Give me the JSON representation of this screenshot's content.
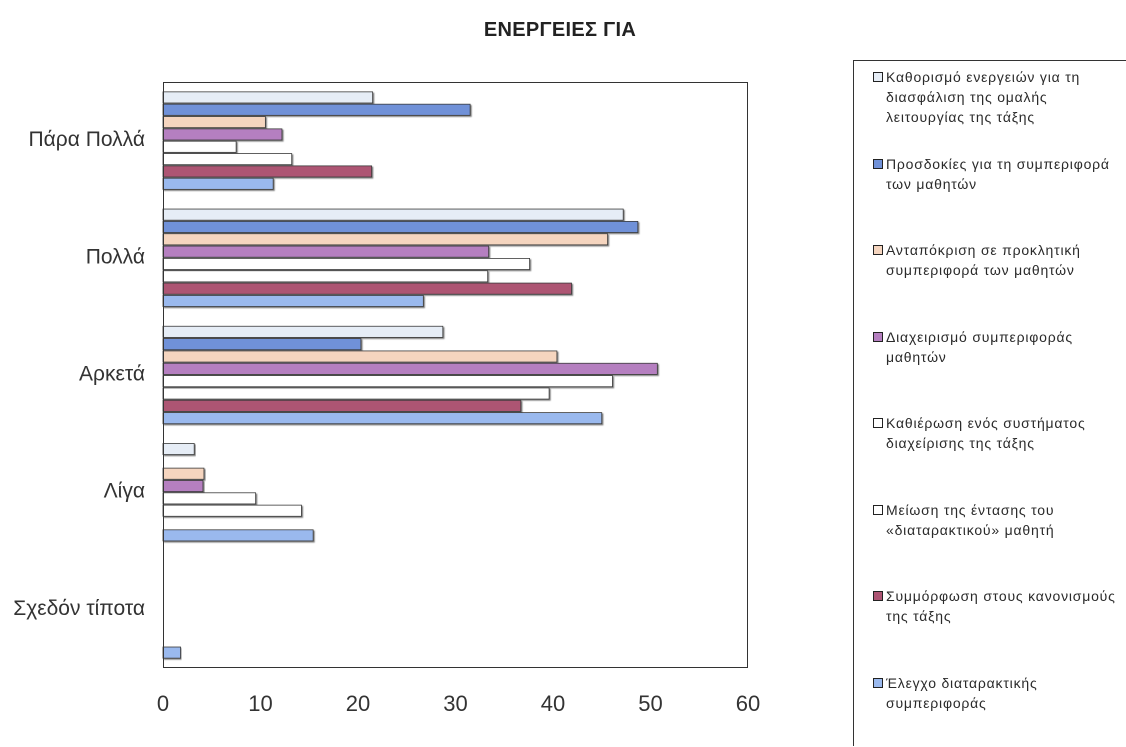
{
  "chart_data": {
    "type": "bar",
    "orientation": "horizontal",
    "title": "ΕΝΕΡΓΕΙΕΣ ΓΙΑ",
    "categories": [
      "Πάρα Πολλά",
      "Πολλά",
      "Αρκετά",
      "Λίγα",
      "Σχεδόν τίποτα"
    ],
    "xlim": [
      0,
      60
    ],
    "x_ticks": [
      0,
      10,
      20,
      30,
      40,
      50,
      60
    ],
    "grid": false,
    "legend_position": "right",
    "series": [
      {
        "name": "Καθορισμό ενεργειών για τη διασφάλιση της ομαλής λειτουργίας της τάξης",
        "color": "#e6edf6",
        "values": [
          21.5,
          47.2,
          28.7,
          3.2,
          0
        ]
      },
      {
        "name": "Προσδοκίες για τη συμπεριφορά των μαθητών",
        "color": "#7091d8",
        "values": [
          31.5,
          48.7,
          20.3,
          0,
          0
        ]
      },
      {
        "name": "Ανταπόκριση σε προκλητική συμπεριφορά των μαθητών",
        "color": "#f5d5bf",
        "values": [
          10.5,
          45.6,
          40.4,
          4.2,
          0
        ]
      },
      {
        "name": "Διαχειρισμό συμπεριφοράς μαθητών",
        "color": "#b57fc0",
        "values": [
          12.2,
          33.4,
          50.7,
          4.1,
          0
        ]
      },
      {
        "name": "Καθιέρωση ενός συστήματος διαχείρισης της τάξης",
        "color": "#ffffff",
        "values": [
          7.5,
          37.6,
          46.1,
          9.5,
          0
        ]
      },
      {
        "name": "Μείωση της έντασης του «διαταρακτικού» μαθητή",
        "color": "#ffffff",
        "values": [
          13.2,
          33.3,
          39.6,
          14.2,
          0
        ]
      },
      {
        "name": "Συμμόρφωση στους κανονισμούς της τάξης",
        "color": "#ad5473",
        "values": [
          21.4,
          41.9,
          36.7,
          0,
          0
        ]
      },
      {
        "name": "Έλεγχο διαταρακτικής συμπεριφοράς",
        "color": "#9ab9ee",
        "values": [
          11.3,
          26.7,
          45.0,
          15.4,
          1.8
        ]
      }
    ]
  }
}
